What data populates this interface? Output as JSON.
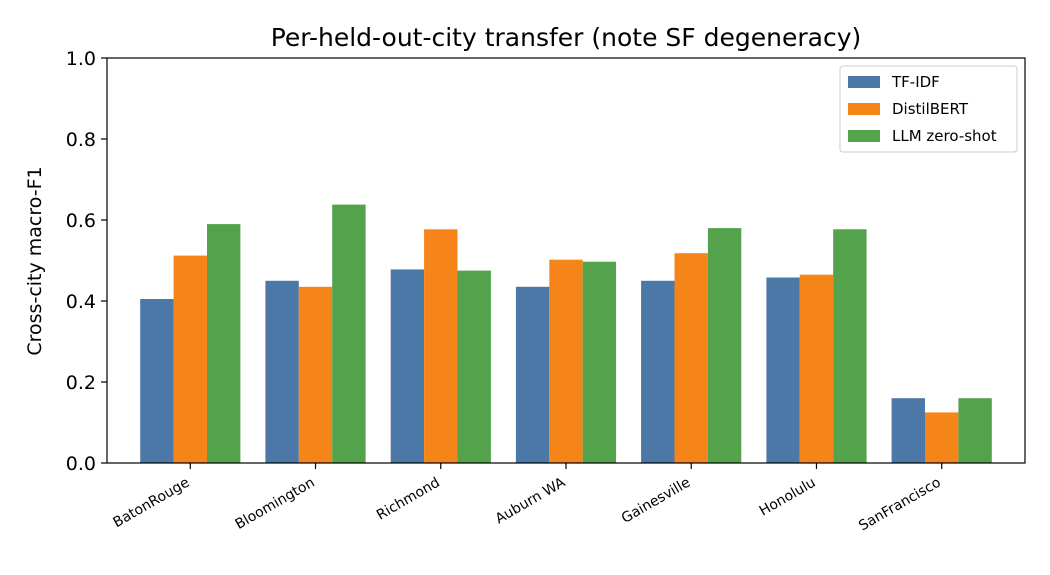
{
  "chart_data": {
    "type": "bar",
    "title": "Per-held-out-city transfer (note SF degeneracy)",
    "xlabel": "",
    "ylabel": "Cross-city macro-F1",
    "ylim": [
      0,
      1.0
    ],
    "yticks": [
      "0.0",
      "0.2",
      "0.4",
      "0.6",
      "0.8",
      "1.0"
    ],
    "categories": [
      "BatonRouge",
      "Bloomington",
      "Richmond",
      "Auburn WA",
      "Gainesville",
      "Honolulu",
      "SanFrancisco"
    ],
    "series": [
      {
        "name": "TF-IDF",
        "color": "#4c78a8",
        "values": [
          0.405,
          0.45,
          0.478,
          0.435,
          0.45,
          0.458,
          0.16
        ]
      },
      {
        "name": "DistilBERT",
        "color": "#f58518",
        "values": [
          0.512,
          0.435,
          0.577,
          0.502,
          0.518,
          0.465,
          0.125
        ]
      },
      {
        "name": "LLM zero-shot",
        "color": "#54a24b",
        "values": [
          0.59,
          0.638,
          0.475,
          0.497,
          0.58,
          0.577,
          0.16
        ]
      }
    ],
    "legend_position": "top-right",
    "grid": false,
    "xtick_rotation": "rotated"
  }
}
